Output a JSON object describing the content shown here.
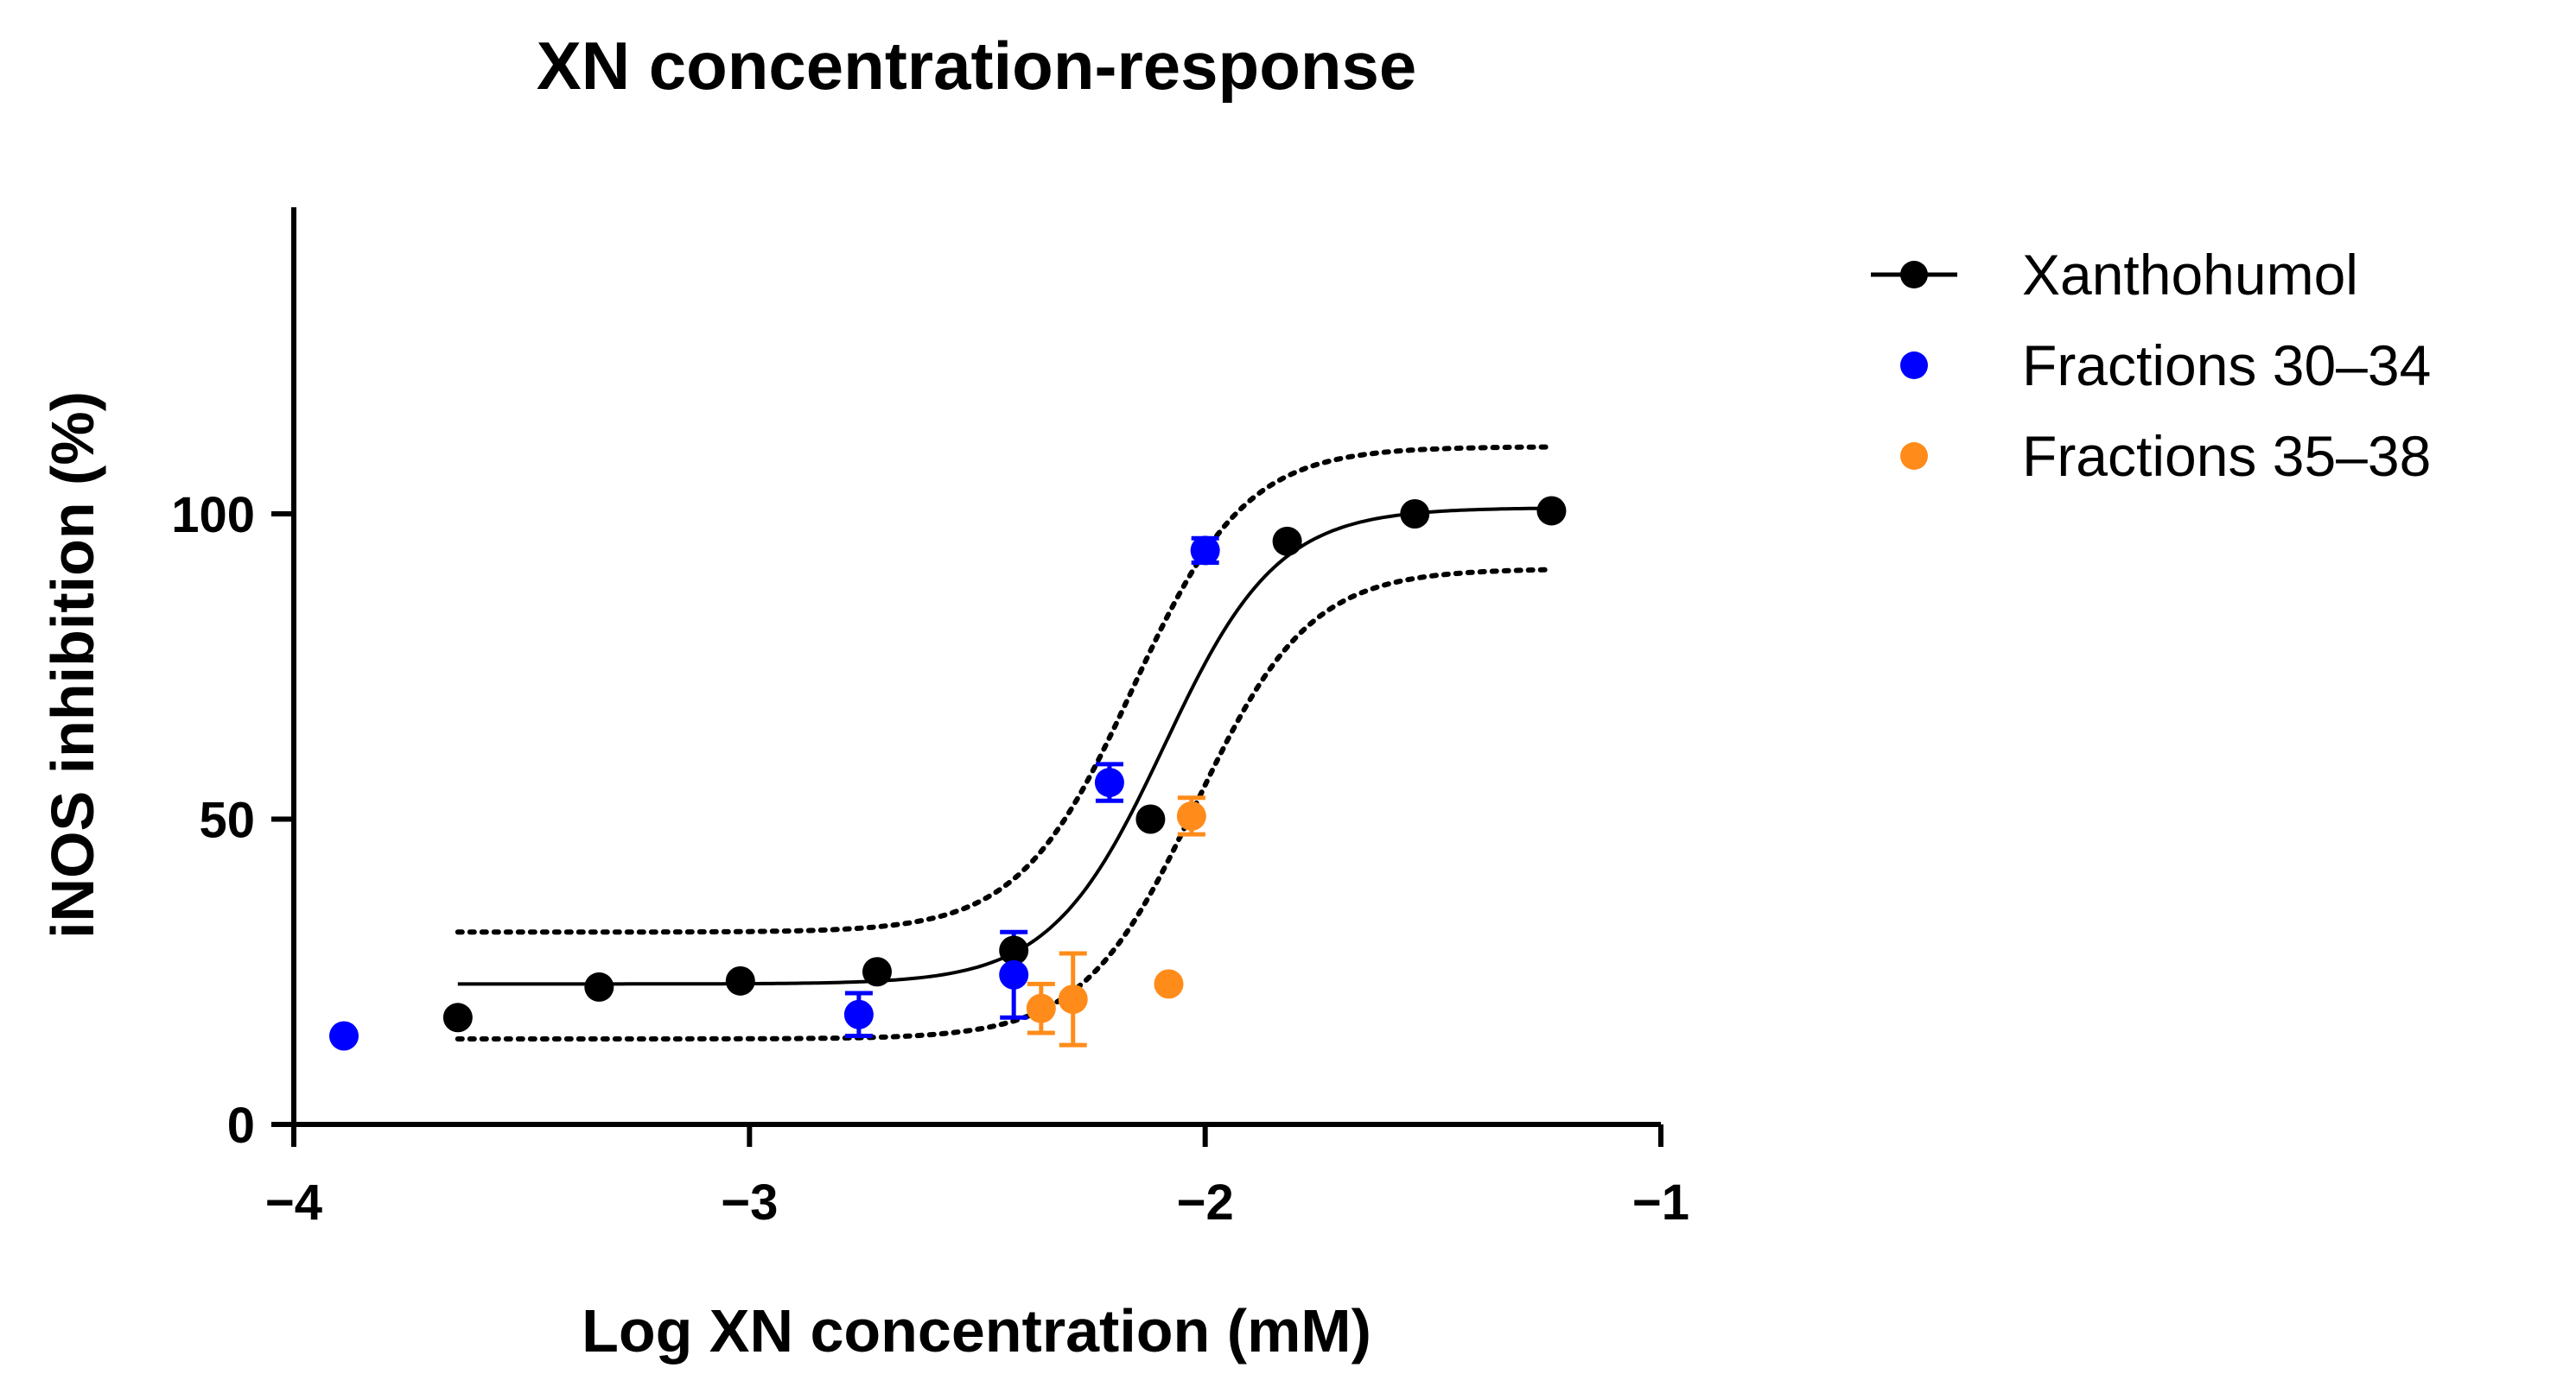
{
  "chart_data": {
    "type": "scatter",
    "title": "XN concentration-response",
    "xlabel": "Log XN concentration (mM)",
    "ylabel": "iNOS inhibition (%)",
    "xlim": [
      -4,
      -1
    ],
    "ylim": [
      0,
      150
    ],
    "x_ticks": [
      -4,
      -3,
      -2,
      -1
    ],
    "x_tick_labels": [
      "−4",
      "−3",
      "−2",
      "−1"
    ],
    "y_ticks": [
      0,
      50,
      100
    ],
    "y_tick_labels": [
      "0",
      "50",
      "100"
    ],
    "grid": false,
    "legend_position": "top-right-outside",
    "series": [
      {
        "name": "Xanthohumol",
        "color": "#000000",
        "style": "points+fit-line",
        "x": [
          -3.64,
          -3.33,
          -3.02,
          -2.72,
          -2.42,
          -2.12,
          -1.82,
          -1.54,
          -1.24
        ],
        "y": [
          17.5,
          22.5,
          23.5,
          25.0,
          28.5,
          50.0,
          95.5,
          100.0,
          100.5
        ],
        "error": [
          0,
          0,
          0,
          0,
          0,
          0,
          0,
          0,
          0
        ]
      },
      {
        "name": "Fractions 30–34",
        "color": "#0000ff",
        "style": "points",
        "x": [
          -3.89,
          -2.76,
          -2.42,
          -2.21,
          -2.0
        ],
        "y": [
          14.5,
          18.0,
          24.5,
          56.0,
          94.0
        ],
        "error": [
          0,
          3.5,
          7.0,
          3.0,
          2.0
        ]
      },
      {
        "name": "Fractions 35–38",
        "color": "#ff8c1a",
        "style": "points",
        "x": [
          -2.36,
          -2.29,
          -2.08,
          -2.03
        ],
        "y": [
          19.0,
          20.5,
          23.0,
          50.5
        ],
        "error": [
          4.0,
          7.5,
          0,
          3.0
        ]
      }
    ],
    "fit": {
      "model": "sigmoidal dose-response (4PL)",
      "bottom": 23.0,
      "top": 101.0,
      "log_ec50": -2.09,
      "hill_slope": 3.5,
      "x_range": [
        -3.64,
        -1.24
      ],
      "confidence_band": {
        "upper": {
          "bottom": 31.5,
          "top": 111.0,
          "log_ec50": -2.16
        },
        "lower": {
          "bottom": 14.0,
          "top": 91.0,
          "log_ec50": -2.02
        }
      }
    }
  }
}
